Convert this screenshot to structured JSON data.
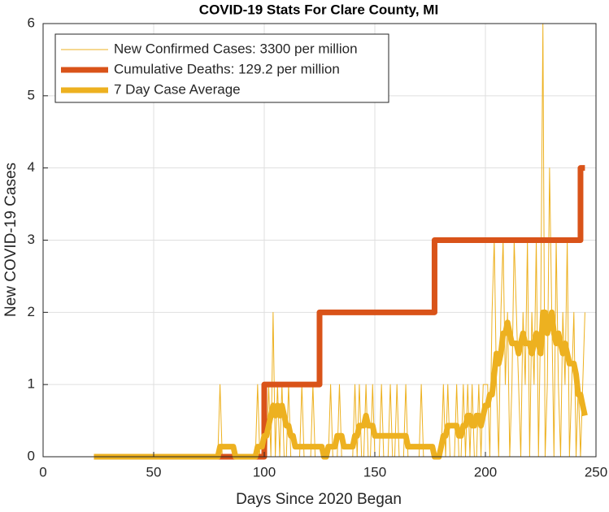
{
  "chart_data": {
    "type": "line",
    "title": "COVID-19 Stats For Clare County, MI",
    "xlabel": "Days Since 2020 Began",
    "ylabel": "New COVID-19 Cases",
    "xlim": [
      0,
      250
    ],
    "ylim": [
      0,
      6
    ],
    "xticks": [
      0,
      50,
      100,
      150,
      200,
      250
    ],
    "yticks": [
      0,
      1,
      2,
      3,
      4,
      5,
      6
    ],
    "grid": true,
    "legend": "top-left",
    "x": [
      23,
      24,
      25,
      26,
      27,
      28,
      29,
      30,
      31,
      32,
      33,
      34,
      35,
      36,
      37,
      38,
      39,
      40,
      41,
      42,
      43,
      44,
      45,
      46,
      47,
      48,
      49,
      50,
      51,
      52,
      53,
      54,
      55,
      56,
      57,
      58,
      59,
      60,
      61,
      62,
      63,
      64,
      65,
      66,
      67,
      68,
      69,
      70,
      71,
      72,
      73,
      74,
      75,
      76,
      77,
      78,
      79,
      80,
      81,
      82,
      83,
      84,
      85,
      86,
      87,
      88,
      89,
      90,
      91,
      92,
      93,
      94,
      95,
      96,
      97,
      98,
      99,
      100,
      101,
      102,
      103,
      104,
      105,
      106,
      107,
      108,
      109,
      110,
      111,
      112,
      113,
      114,
      115,
      116,
      117,
      118,
      119,
      120,
      121,
      122,
      123,
      124,
      125,
      126,
      127,
      128,
      129,
      130,
      131,
      132,
      133,
      134,
      135,
      136,
      137,
      138,
      139,
      140,
      141,
      142,
      143,
      144,
      145,
      146,
      147,
      148,
      149,
      150,
      151,
      152,
      153,
      154,
      155,
      156,
      157,
      158,
      159,
      160,
      161,
      162,
      163,
      164,
      165,
      166,
      167,
      168,
      169,
      170,
      171,
      172,
      173,
      174,
      175,
      176,
      177,
      178,
      179,
      180,
      181,
      182,
      183,
      184,
      185,
      186,
      187,
      188,
      189,
      190,
      191,
      192,
      193,
      194,
      195,
      196,
      197,
      198,
      199,
      200,
      201,
      202,
      203,
      204,
      205,
      206,
      207,
      208,
      209,
      210,
      211,
      212,
      213,
      214,
      215,
      216,
      217,
      218,
      219,
      220,
      221,
      222,
      223,
      224,
      225,
      226,
      227,
      228,
      229,
      230,
      231,
      232,
      233,
      234,
      235,
      236,
      237,
      238,
      239,
      240,
      241,
      242,
      243,
      244,
      245
    ],
    "series": [
      {
        "name": "New Confirmed Cases: 3300 per million",
        "color": "#EDB120",
        "width": 1,
        "values": [
          0,
          0,
          0,
          0,
          0,
          0,
          0,
          0,
          0,
          0,
          0,
          0,
          0,
          0,
          0,
          0,
          0,
          0,
          0,
          0,
          0,
          0,
          0,
          0,
          0,
          0,
          0,
          0,
          0,
          0,
          0,
          0,
          0,
          0,
          0,
          0,
          0,
          0,
          0,
          0,
          0,
          0,
          0,
          0,
          0,
          0,
          0,
          0,
          0,
          0,
          0,
          0,
          0,
          0,
          0,
          0,
          0,
          1,
          0,
          0,
          0,
          0,
          0,
          0,
          0,
          0,
          0,
          0,
          0,
          0,
          0,
          0,
          0,
          0,
          1,
          0,
          0,
          1,
          0,
          1,
          0,
          2,
          0,
          1,
          0,
          1,
          0,
          0,
          1,
          0,
          0,
          0,
          0,
          0,
          1,
          0,
          0,
          0,
          0,
          1,
          0,
          0,
          0,
          0,
          0,
          0,
          0,
          1,
          0,
          0,
          0,
          1,
          0,
          0,
          0,
          0,
          0,
          0,
          1,
          0,
          1,
          0,
          0,
          1,
          0,
          0,
          1,
          0,
          0,
          0,
          1,
          0,
          0,
          0,
          1,
          0,
          0,
          1,
          0,
          0,
          0,
          1,
          0,
          0,
          0,
          0,
          0,
          0,
          1,
          0,
          0,
          0,
          0,
          0,
          0,
          0,
          0,
          0,
          1,
          0,
          1,
          0,
          0,
          0,
          1,
          0,
          0,
          1,
          0,
          1,
          0,
          1,
          0,
          0,
          1,
          0,
          1,
          1,
          1,
          0,
          2,
          3,
          1,
          0,
          2,
          3,
          1,
          2,
          0,
          1,
          3,
          2,
          1,
          0,
          2,
          1,
          3,
          0,
          2,
          1,
          3,
          0,
          2,
          6,
          0,
          1,
          4,
          2,
          0,
          3,
          1,
          0,
          2,
          1,
          3,
          0,
          1,
          2,
          0,
          1,
          0,
          1,
          2
        ]
      },
      {
        "name": "Cumulative Deaths: 129.2 per million",
        "color": "#D95319",
        "width": 7,
        "x": [
          23,
          100,
          100,
          125,
          125,
          177,
          177,
          243,
          243,
          245
        ],
        "values": [
          0,
          0,
          1,
          1,
          2,
          2,
          3,
          3,
          4,
          4
        ]
      },
      {
        "name": "7 Day Case Average",
        "color": "#EDB120",
        "width": 7,
        "values": [
          0,
          0,
          0,
          0,
          0,
          0,
          0,
          0,
          0,
          0,
          0,
          0,
          0,
          0,
          0,
          0,
          0,
          0,
          0,
          0,
          0,
          0,
          0,
          0,
          0,
          0,
          0,
          0,
          0,
          0,
          0,
          0,
          0,
          0,
          0,
          0,
          0,
          0,
          0,
          0,
          0,
          0,
          0,
          0,
          0,
          0,
          0,
          0,
          0,
          0,
          0,
          0,
          0,
          0,
          0,
          0,
          0,
          0.14,
          0.14,
          0.14,
          0.14,
          0.14,
          0.14,
          0.14,
          0,
          0,
          0,
          0,
          0,
          0,
          0,
          0,
          0,
          0,
          0.14,
          0.14,
          0.14,
          0.29,
          0.29,
          0.43,
          0.57,
          0.71,
          0.57,
          0.71,
          0.57,
          0.71,
          0.57,
          0.43,
          0.43,
          0.29,
          0.29,
          0.14,
          0.14,
          0.14,
          0.14,
          0.14,
          0.14,
          0.14,
          0.14,
          0.14,
          0.14,
          0.14,
          0.14,
          0.14,
          0,
          0,
          0.14,
          0.14,
          0.14,
          0.14,
          0.29,
          0.29,
          0.29,
          0.14,
          0.14,
          0.14,
          0.14,
          0.14,
          0.29,
          0.29,
          0.43,
          0.43,
          0.43,
          0.57,
          0.43,
          0.43,
          0.43,
          0.29,
          0.29,
          0.29,
          0.29,
          0.29,
          0.29,
          0.29,
          0.29,
          0.29,
          0.29,
          0.29,
          0.29,
          0.29,
          0.29,
          0.29,
          0.14,
          0.14,
          0.14,
          0.14,
          0.14,
          0.14,
          0.14,
          0.14,
          0.14,
          0.14,
          0.14,
          0.14,
          0,
          0,
          0,
          0.14,
          0.29,
          0.29,
          0.43,
          0.43,
          0.43,
          0.43,
          0.43,
          0.29,
          0.29,
          0.43,
          0.43,
          0.57,
          0.57,
          0.43,
          0.43,
          0.57,
          0.57,
          0.43,
          0.57,
          0.71,
          0.71,
          0.86,
          0.86,
          1.14,
          1.43,
          1.29,
          1.43,
          1.71,
          1.71,
          1.86,
          1.71,
          1.57,
          1.57,
          1.57,
          1.43,
          1.57,
          1.71,
          1.57,
          1.57,
          1.57,
          1.43,
          1.57,
          1.71,
          1.57,
          1.43,
          2,
          2,
          1.71,
          1.86,
          2,
          1.71,
          1.57,
          1.71,
          1.57,
          1.43,
          1.57,
          1.43,
          1.29,
          1.29,
          1.29,
          1.14,
          0.86,
          0.86,
          0.71,
          0.57
        ]
      }
    ]
  }
}
